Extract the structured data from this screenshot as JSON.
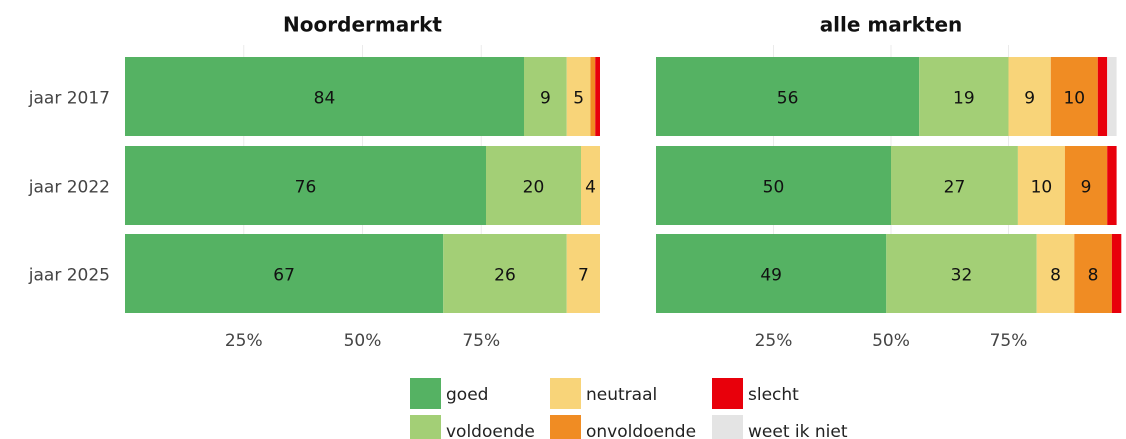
{
  "chart_data": {
    "type": "bar",
    "orientation": "horizontal",
    "stacked": true,
    "categories": [
      "jaar 2017",
      "jaar 2022",
      "jaar 2025"
    ],
    "xlim": [
      0,
      100
    ],
    "xticks": [
      {
        "value": 25,
        "label": "25%"
      },
      {
        "value": 50,
        "label": "50%"
      },
      {
        "value": 75,
        "label": "75%"
      }
    ],
    "grid": true,
    "legend": [
      {
        "name": "goed",
        "color": "#55b263"
      },
      {
        "name": "voldoende",
        "color": "#a3cf76"
      },
      {
        "name": "neutraal",
        "color": "#f8d479"
      },
      {
        "name": "onvoldoende",
        "color": "#f08c23"
      },
      {
        "name": "slecht",
        "color": "#e8000b"
      },
      {
        "name": "weet ik niet",
        "color": "#e4e4e4"
      }
    ],
    "panels": [
      {
        "title": "Noordermarkt",
        "series": [
          {
            "values": [
              84,
              76,
              67
            ]
          },
          {
            "values": [
              9,
              20,
              26
            ]
          },
          {
            "values": [
              5,
              4,
              7
            ]
          },
          {
            "values": [
              1,
              null,
              null
            ]
          },
          {
            "values": [
              1,
              null,
              null
            ]
          },
          {
            "values": [
              null,
              null,
              null
            ]
          }
        ]
      },
      {
        "title": "alle markten",
        "series": [
          {
            "values": [
              56,
              50,
              49
            ]
          },
          {
            "values": [
              19,
              27,
              32
            ]
          },
          {
            "values": [
              9,
              10,
              8
            ]
          },
          {
            "values": [
              10,
              9,
              8
            ]
          },
          {
            "values": [
              2,
              2,
              2
            ]
          },
          {
            "values": [
              2,
              null,
              null
            ]
          }
        ]
      }
    ]
  }
}
